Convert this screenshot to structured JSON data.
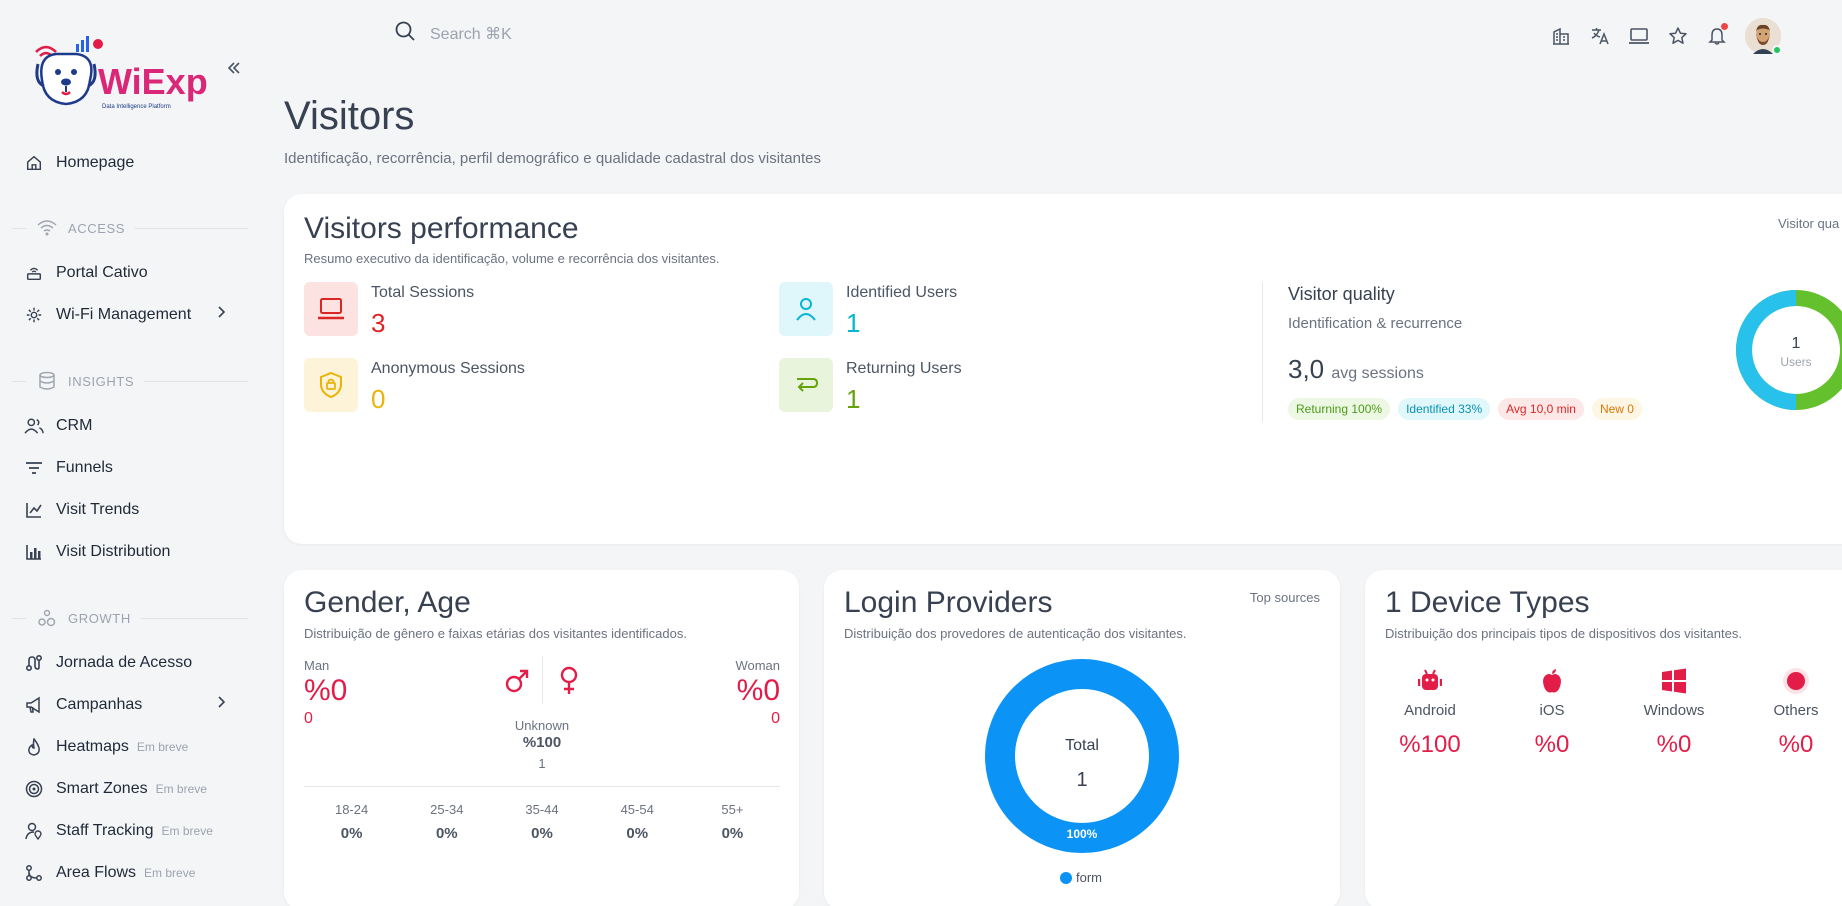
{
  "brand": {
    "name": "WiExp",
    "tagline": "Data Intelligence Platform"
  },
  "search": {
    "placeholder": "Search ⌘K"
  },
  "sidebar": {
    "home": "Homepage",
    "sections": [
      {
        "title": "ACCESS",
        "items": [
          {
            "label": "Portal Cativo"
          },
          {
            "label": "Wi-Fi Management"
          }
        ]
      },
      {
        "title": "INSIGHTS",
        "items": [
          {
            "label": "CRM"
          },
          {
            "label": "Funnels"
          },
          {
            "label": "Visit Trends"
          },
          {
            "label": "Visit Distribution"
          }
        ]
      },
      {
        "title": "GROWTH",
        "items": [
          {
            "label": "Jornada de Acesso"
          },
          {
            "label": "Campanhas"
          },
          {
            "label": "Heatmaps",
            "badge": "Em breve"
          },
          {
            "label": "Smart Zones",
            "badge": "Em breve"
          },
          {
            "label": "Staff Tracking",
            "badge": "Em breve"
          },
          {
            "label": "Area Flows",
            "badge": "Em breve"
          }
        ]
      }
    ]
  },
  "page": {
    "title": "Visitors",
    "subtitle": "Identificação, recorrência, perfil demográfico e qualidade cadastral dos visitantes"
  },
  "performance": {
    "title": "Visitors performance",
    "subtitle": "Resumo executivo da identificação, volume e recorrência dos visitantes.",
    "corner_label": "Visitor qua",
    "kpis": [
      {
        "label": "Total Sessions",
        "value": "3",
        "color": "#dc2626"
      },
      {
        "label": "Identified Users",
        "value": "1",
        "color": "#06b6d4"
      },
      {
        "label": "Anonymous Sessions",
        "value": "0",
        "color": "#eab308"
      },
      {
        "label": "Returning Users",
        "value": "1",
        "color": "#65a30d"
      }
    ],
    "quality": {
      "title": "Visitor quality",
      "subtitle": "Identification & recurrence",
      "avg_value": "3,0",
      "avg_label": "avg sessions",
      "pills": [
        {
          "text": "Returning 100%",
          "fg": "#4d9a1a",
          "bg": "#ecf8e3"
        },
        {
          "text": "Identified 33%",
          "fg": "#0891b2",
          "bg": "#e0f7fb"
        },
        {
          "text": "Avg 10,0 min",
          "fg": "#dc2626",
          "bg": "#fde8e8"
        },
        {
          "text": "New 0",
          "fg": "#d97706",
          "bg": "#fef6e4"
        }
      ],
      "donut": {
        "center_value": "1",
        "center_label": "Users"
      }
    }
  },
  "gender": {
    "title": "Gender, Age",
    "subtitle": "Distribuição de gênero e faixas etárias dos visitantes identificados.",
    "man": {
      "label": "Man",
      "pct": "%0",
      "count": "0"
    },
    "woman": {
      "label": "Woman",
      "pct": "%0",
      "count": "0"
    },
    "unknown": {
      "label": "Unknown",
      "pct": "%100",
      "count": "1"
    },
    "ages": [
      {
        "range": "18-24",
        "pct": "0%"
      },
      {
        "range": "25-34",
        "pct": "0%"
      },
      {
        "range": "35-44",
        "pct": "0%"
      },
      {
        "range": "45-54",
        "pct": "0%"
      },
      {
        "range": "55+",
        "pct": "0%"
      }
    ]
  },
  "login": {
    "title": "Login Providers",
    "subtitle": "Distribuição dos provedores de autenticação dos visitantes.",
    "corner": "Top sources",
    "total_label": "Total",
    "total_value": "1",
    "slice_label": "100%",
    "legend": "form",
    "color": "#0b93f6"
  },
  "devices": {
    "title": "1 Device Types",
    "subtitle": "Distribuição dos principais tipos de dispositivos dos visitantes.",
    "items": [
      {
        "name": "Android",
        "pct": "%100"
      },
      {
        "name": "iOS",
        "pct": "%0"
      },
      {
        "name": "Windows",
        "pct": "%0"
      },
      {
        "name": "Others",
        "pct": "%0"
      }
    ]
  }
}
